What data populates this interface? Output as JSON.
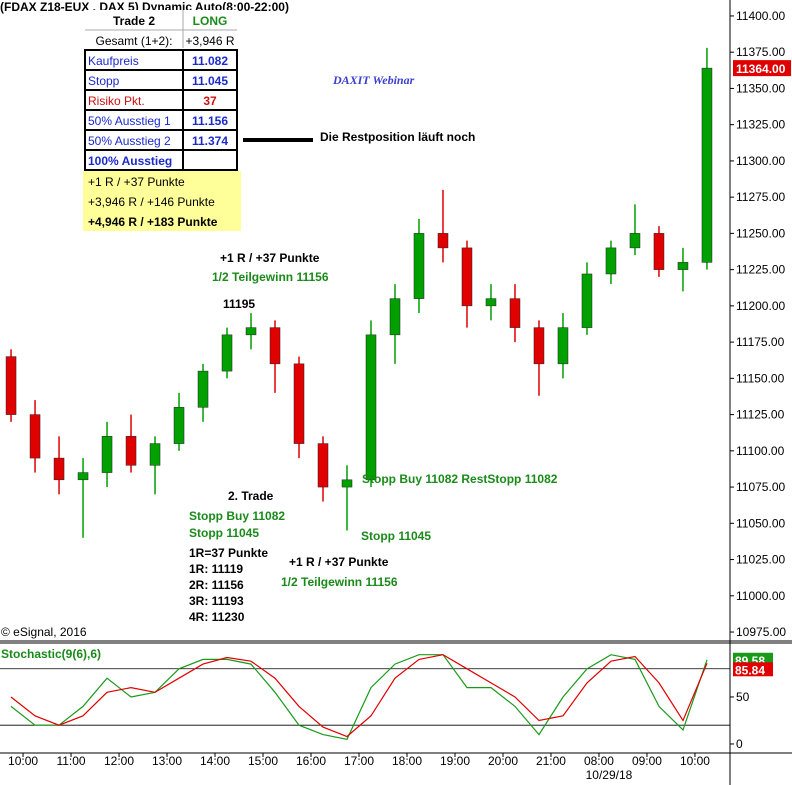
{
  "chart_data": [
    {
      "type": "candlestick",
      "header": "(FDAX Z18-EUX , DAX 5) Dynamic Auto(8:00-22:00)",
      "title": "DAXIT Webinar",
      "credit": "© eSignal, 2016",
      "x": [
        -0.25,
        0.25,
        0.75,
        1.25,
        1.75,
        2.25,
        2.75,
        3.25,
        3.75,
        4.25,
        4.75,
        5.25,
        5.75,
        6.25,
        6.75,
        7.25,
        7.75,
        8.25,
        8.75,
        9.25,
        9.75,
        10.25,
        10.75,
        11.25,
        11.75,
        12.25,
        12.75,
        13.25,
        13.75,
        14.25
      ],
      "open": [
        11165,
        11125,
        11095,
        11080,
        11085,
        11110,
        11090,
        11105,
        11130,
        11155,
        11180,
        11185,
        11160,
        11105,
        11075,
        11080,
        11180,
        11205,
        11250,
        11240,
        11200,
        11205,
        11185,
        11160,
        11185,
        11222,
        11240,
        11250,
        11225,
        11230
      ],
      "high": [
        11170,
        11135,
        11110,
        11095,
        11120,
        11125,
        11110,
        11140,
        11160,
        11185,
        11195,
        11190,
        11165,
        11110,
        11090,
        11190,
        11215,
        11260,
        11280,
        11245,
        11215,
        11215,
        11190,
        11195,
        11230,
        11245,
        11270,
        11255,
        11240,
        11378
      ],
      "low": [
        11120,
        11085,
        11070,
        11040,
        11075,
        11085,
        11070,
        11100,
        11120,
        11150,
        11170,
        11140,
        11095,
        11065,
        11045,
        11075,
        11160,
        11195,
        11230,
        11185,
        11190,
        11175,
        11138,
        11150,
        11180,
        11215,
        11235,
        11220,
        11210,
        11225
      ],
      "close": [
        11125,
        11095,
        11080,
        11085,
        11110,
        11090,
        11105,
        11130,
        11155,
        11180,
        11185,
        11160,
        11105,
        11075,
        11080,
        11180,
        11205,
        11250,
        11240,
        11200,
        11205,
        11185,
        11160,
        11185,
        11222,
        11240,
        11250,
        11225,
        11230,
        11364
      ],
      "up_color": "#00a000",
      "down_color": "#e00000",
      "last_price": {
        "value": 11364,
        "label": "11364.00"
      },
      "xlim": [
        -0.48,
        14.73
      ],
      "ylim": [
        10969.5,
        11411
      ],
      "xticks": [
        {
          "value": 0,
          "label": "10:00"
        },
        {
          "value": 1,
          "label": "11:00"
        },
        {
          "value": 2,
          "label": "12:00"
        },
        {
          "value": 3,
          "label": "13:00"
        },
        {
          "value": 4,
          "label": "14:00"
        },
        {
          "value": 5,
          "label": "15:00"
        },
        {
          "value": 6,
          "label": "16:00"
        },
        {
          "value": 7,
          "label": "17:00"
        },
        {
          "value": 8,
          "label": "18:00"
        },
        {
          "value": 9,
          "label": "19:00"
        },
        {
          "value": 10,
          "label": "20:00"
        },
        {
          "value": 11,
          "label": "21:00"
        },
        {
          "value": 12,
          "label": "08:00"
        },
        {
          "value": 13,
          "label": "09:00"
        },
        {
          "value": 14,
          "label": "10:00"
        }
      ],
      "date_label": "10/29/18",
      "yticks": [
        {
          "value": 10975,
          "label": "10975.00"
        },
        {
          "value": 11000,
          "label": "11000.00"
        },
        {
          "value": 11025,
          "label": "11025.00"
        },
        {
          "value": 11050,
          "label": "11050.00"
        },
        {
          "value": 11075,
          "label": "11075.00"
        },
        {
          "value": 11100,
          "label": "11100.00"
        },
        {
          "value": 11125,
          "label": "11125.00"
        },
        {
          "value": 11150,
          "label": "11150.00"
        },
        {
          "value": 11175,
          "label": "11175.00"
        },
        {
          "value": 11200,
          "label": "11200.00"
        },
        {
          "value": 11225,
          "label": "11225.00"
        },
        {
          "value": 11250,
          "label": "11250.00"
        },
        {
          "value": 11275,
          "label": "11275.00"
        },
        {
          "value": 11300,
          "label": "11300.00"
        },
        {
          "value": 11325,
          "label": "11325.00"
        },
        {
          "value": 11350,
          "label": "11350.00"
        },
        {
          "value": 11375,
          "label": "11375.00"
        },
        {
          "value": 11400,
          "label": "11400.00"
        }
      ],
      "annotations": [
        {
          "text": "+1 R / +37 Punkte",
          "color": "#000000"
        },
        {
          "text": "1/2 Teilgewinn 11156",
          "color": "#1a8a1a"
        },
        {
          "text": "11195",
          "color": "#000000"
        },
        {
          "text": "2. Trade",
          "color": "#000000"
        },
        {
          "text": "Stopp Buy 11082",
          "color": "#1a8a1a"
        },
        {
          "text": "Stopp 11045",
          "color": "#1a8a1a"
        },
        {
          "text": "1R=37 Punkte",
          "color": "#000000"
        },
        {
          "text": "1R: 11119",
          "color": "#000000"
        },
        {
          "text": "2R: 11156",
          "color": "#000000"
        },
        {
          "text": "3R: 11193",
          "color": "#000000"
        },
        {
          "text": "4R: 11230",
          "color": "#000000"
        },
        {
          "text": "+1 R / +37 Punkte",
          "color": "#000000"
        },
        {
          "text": "1/2 Teilgewinn 11156",
          "color": "#1a8a1a"
        },
        {
          "text": "Stopp Buy 11082 RestStopp 11082",
          "color": "#1a8a1a"
        },
        {
          "text": "Stopp 11045",
          "color": "#1a8a1a"
        },
        {
          "text": "Die Restposition läuft noch",
          "color": "#000000"
        }
      ]
    },
    {
      "type": "line",
      "title": "Stochastic(9(6),6)",
      "x": [
        -0.25,
        0.25,
        0.75,
        1.25,
        1.75,
        2.25,
        2.75,
        3.25,
        3.75,
        4.25,
        4.75,
        5.25,
        5.75,
        6.25,
        6.75,
        7.25,
        7.75,
        8.25,
        8.75,
        9.25,
        9.75,
        10.25,
        10.75,
        11.25,
        11.75,
        12.25,
        12.75,
        13.25,
        13.75,
        14.25
      ],
      "series": [
        {
          "color": "#1a9a1a",
          "values": [
            40,
            20,
            20,
            40,
            70,
            50,
            55,
            80,
            90,
            90,
            85,
            55,
            20,
            10,
            5,
            60,
            85,
            95,
            95,
            60,
            60,
            40,
            10,
            50,
            80,
            95,
            90,
            40,
            15,
            89.58
          ],
          "end_label": "89.58"
        },
        {
          "color": "#e00000",
          "values": [
            50,
            30,
            20,
            30,
            55,
            60,
            55,
            70,
            85,
            92,
            88,
            70,
            40,
            18,
            8,
            30,
            70,
            90,
            95,
            80,
            65,
            50,
            25,
            30,
            65,
            88,
            93,
            65,
            25,
            85.84
          ],
          "end_label": "85.84"
        }
      ],
      "levels": [
        20,
        80
      ],
      "xlim": [
        -0.48,
        14.73
      ],
      "ylim": [
        -9.6,
        107.4
      ],
      "yticks": [
        0,
        50
      ]
    }
  ],
  "table": {
    "rows": [
      [
        "Trade 2",
        "LONG"
      ],
      [
        "Gesamt (1+2):",
        "+3,946 R"
      ],
      [
        "Kaufpreis",
        "11.082"
      ],
      [
        "Stopp",
        "11.045"
      ],
      [
        "Risiko Pkt.",
        "37"
      ],
      [
        "50% Ausstieg 1",
        "11.156"
      ],
      [
        "50% Ausstieg 2",
        "11.374"
      ],
      [
        "100% Ausstieg"
      ]
    ],
    "notes": [
      "+1 R / +37 Punkte",
      "+3,946 R / +146 Punkte",
      "+4,946 R / +183 Punkte"
    ]
  }
}
